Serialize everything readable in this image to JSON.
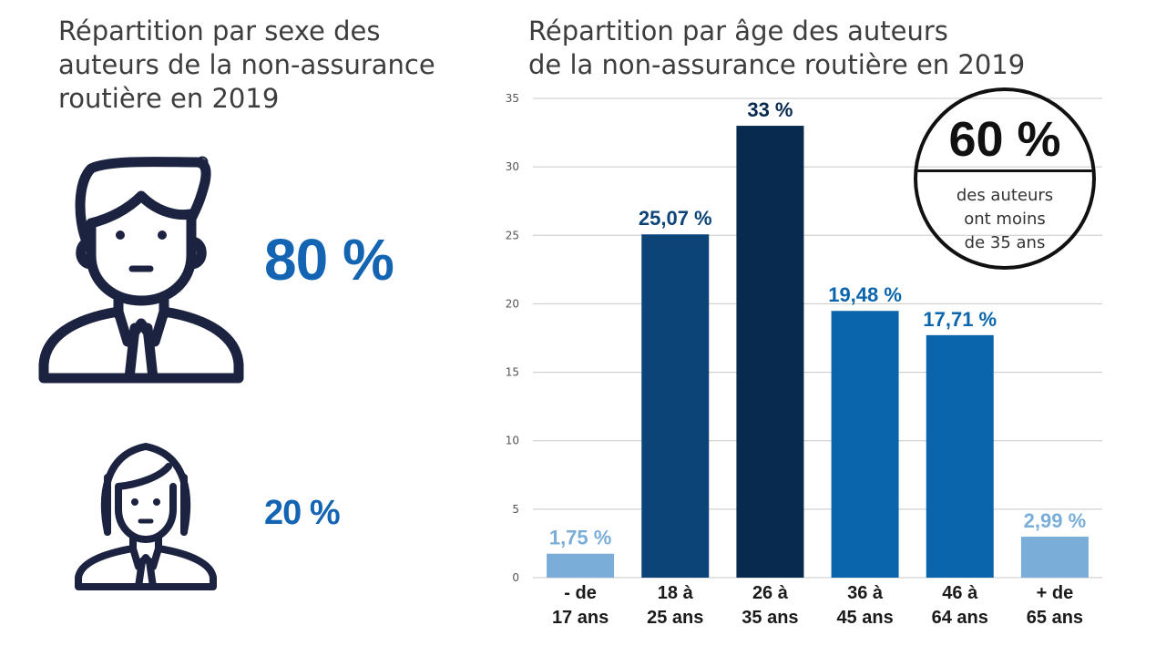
{
  "left_panel": {
    "title_lines": [
      "Répartition par sexe des",
      "auteurs de la non-assurance",
      "routière en 2019"
    ],
    "male_percent": "80 %",
    "female_percent": "20 %"
  },
  "badge": {
    "value": "60 %",
    "lines": [
      "des auteurs",
      "ont moins",
      "de 35 ans"
    ]
  },
  "colors": {
    "title": "#3d3d3d",
    "percent_text": "#1464b4",
    "icon": "#1c2340",
    "grid": "#c8c8c8",
    "axis_text": "#555555"
  },
  "chart_data": {
    "type": "bar",
    "title_lines": [
      "Répartition par âge des auteurs",
      "de la non-assurance routière en 2019"
    ],
    "categories": [
      [
        "- de",
        "17 ans"
      ],
      [
        "18 à",
        "25 ans"
      ],
      [
        "26 à",
        "35 ans"
      ],
      [
        "36 à",
        "45 ans"
      ],
      [
        "46 à",
        "64 ans"
      ],
      [
        "+ de",
        "65 ans"
      ]
    ],
    "values": [
      1.75,
      25.07,
      33,
      19.48,
      17.71,
      2.99
    ],
    "labels": [
      "1,75 %",
      "25,07 %",
      "33 %",
      "19,48 %",
      "17,71 %",
      "2,99 %"
    ],
    "bar_colors": [
      "#7aaed8",
      "#0c4478",
      "#082a4e",
      "#0a65ad",
      "#0a65ad",
      "#7aaed8"
    ],
    "label_colors": [
      "#7aaed8",
      "#0c4478",
      "#082a4e",
      "#0a65ad",
      "#0a65ad",
      "#7aaed8"
    ],
    "ylim": [
      0,
      35
    ],
    "yticks": [
      0,
      5,
      10,
      15,
      20,
      25,
      30,
      35
    ],
    "grid": true,
    "xlabel": "",
    "ylabel": ""
  }
}
